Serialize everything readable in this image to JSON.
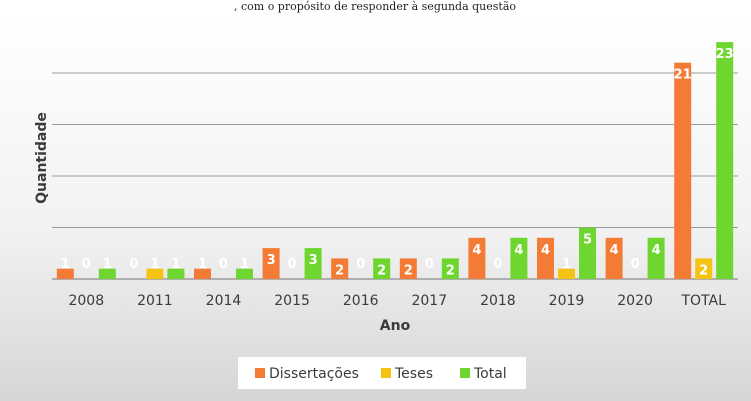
{
  "caption": ", com o propósito de responder à segunda questão",
  "colors": {
    "dissertacoes": "#f47b35",
    "teses": "#f5c314",
    "total": "#6fd62f",
    "background_top": "#ffffff",
    "background_bottom": "#d8d8d8",
    "gridline": "#9a9a9a"
  },
  "chart_data": {
    "type": "bar",
    "xlabel": "Ano",
    "ylabel": "Quantidade",
    "categories": [
      "2008",
      "2011",
      "2014",
      "2015",
      "2016",
      "2017",
      "2018",
      "2019",
      "2020",
      "TOTAL"
    ],
    "series": [
      {
        "name": "Dissertações",
        "values": [
          1,
          0,
          1,
          3,
          2,
          2,
          4,
          4,
          4,
          21
        ]
      },
      {
        "name": "Teses",
        "values": [
          0,
          1,
          0,
          0,
          0,
          0,
          0,
          1,
          0,
          2
        ]
      },
      {
        "name": "Total",
        "values": [
          1,
          1,
          1,
          3,
          2,
          2,
          4,
          5,
          4,
          23
        ]
      }
    ],
    "ylim": [
      0,
      25
    ],
    "y_gridlines": [
      0,
      5,
      10,
      15,
      20
    ],
    "y_tick_labels_shown": false,
    "data_labels": true,
    "grid": true,
    "legend_position": "bottom"
  }
}
